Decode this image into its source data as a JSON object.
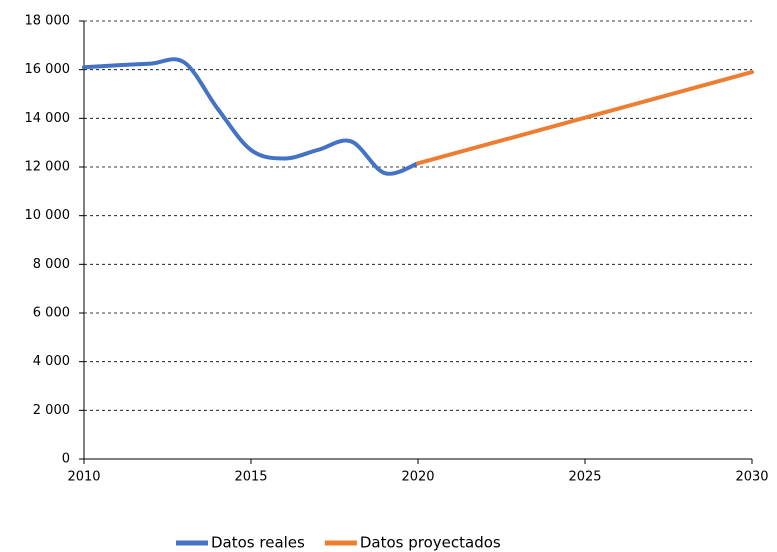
{
  "chart_data": {
    "type": "line",
    "x": [
      2010,
      2011,
      2012,
      2013,
      2014,
      2015,
      2016,
      2017,
      2018,
      2019,
      2020
    ],
    "series": [
      {
        "name": "Datos reales",
        "color": "#4472c4",
        "x": [
          2010,
          2011,
          2012,
          2013,
          2014,
          2015,
          2016,
          2017,
          2018,
          2019,
          2020
        ],
        "values": [
          16100,
          16180,
          16250,
          16300,
          14400,
          12700,
          12350,
          12700,
          13050,
          11750,
          12150
        ]
      },
      {
        "name": "Datos proyectados",
        "color": "#ed7d31",
        "x": [
          2020,
          2030
        ],
        "values": [
          12150,
          15900
        ]
      }
    ],
    "xlim": [
      2010,
      2030
    ],
    "xticks": [
      2010,
      2015,
      2020,
      2025,
      2030
    ],
    "ylim": [
      0,
      18000
    ],
    "yticks": [
      0,
      {
        "value": 2000,
        "label": "2 000"
      },
      {
        "value": 4000,
        "label": "4 000"
      },
      {
        "value": 6000,
        "label": "6 000"
      },
      {
        "value": 8000,
        "label": "8 000"
      },
      {
        "value": 10000,
        "label": "10 000"
      },
      {
        "value": 12000,
        "label": "12 000"
      },
      {
        "value": 14000,
        "label": "14 000"
      },
      {
        "value": 16000,
        "label": "16 000"
      },
      {
        "value": 18000,
        "label": "18 000"
      }
    ],
    "grid": true,
    "legend": "bottom"
  }
}
